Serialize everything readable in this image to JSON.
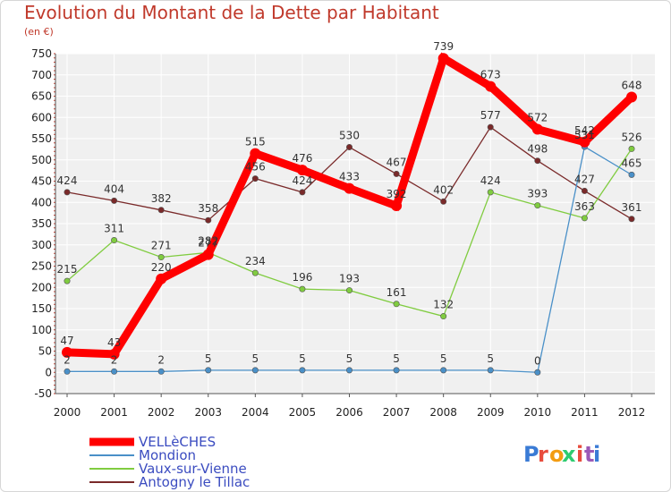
{
  "chart_data": {
    "type": "line",
    "title": "Evolution du Montant de la Dette par Habitant",
    "subtitle": "(en €)",
    "xlabel": "",
    "ylabel": "",
    "x": [
      "2000",
      "2001",
      "2002",
      "2003",
      "2004",
      "2005",
      "2006",
      "2007",
      "2008",
      "2009",
      "2010",
      "2011",
      "2012"
    ],
    "ylim": [
      -50,
      750
    ],
    "yticks": [
      -50,
      0,
      50,
      100,
      150,
      200,
      250,
      300,
      350,
      400,
      450,
      500,
      550,
      600,
      650,
      700,
      750
    ],
    "grid": true,
    "legend_placement": "bottom-left",
    "series": [
      {
        "name": "VELLèCHES",
        "color": "#ff0000",
        "values": [
          47,
          43,
          220,
          277,
          515,
          476,
          433,
          392,
          739,
          673,
          572,
          542,
          648
        ]
      },
      {
        "name": "Mondion",
        "color": "#4a90c8",
        "values": [
          2,
          2,
          2,
          5,
          5,
          5,
          5,
          5,
          5,
          5,
          0,
          531,
          465
        ]
      },
      {
        "name": "Vaux-sur-Vienne",
        "color": "#80cc40",
        "values": [
          215,
          311,
          271,
          282,
          234,
          196,
          193,
          161,
          132,
          424,
          393,
          363,
          526
        ]
      },
      {
        "name": "Antogny le Tillac",
        "color": "#7a2a2a",
        "values": [
          424,
          404,
          382,
          358,
          456,
          424,
          530,
          467,
          402,
          577,
          498,
          427,
          361
        ]
      }
    ]
  },
  "branding": {
    "logo_text": "Proxiti",
    "logo_colors": [
      "#3a7bd5",
      "#e84c3d",
      "#f39c12",
      "#2ecc71",
      "#e84c3d",
      "#9b59b6",
      "#3a7bd5"
    ]
  }
}
